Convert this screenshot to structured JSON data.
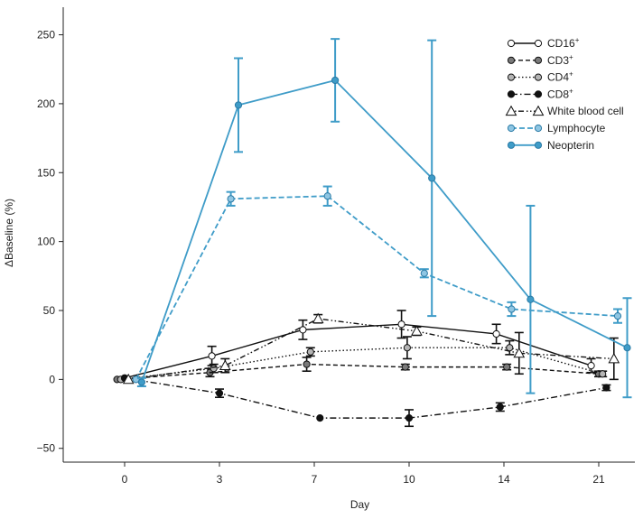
{
  "chart_data": {
    "type": "line",
    "title": "",
    "xlabel": "Day",
    "ylabel": "ΔBaseline (%)",
    "categories": [
      "0",
      "3",
      "7",
      "10",
      "14",
      "21"
    ],
    "yticks": [
      "−50",
      "0",
      "50",
      "100",
      "150",
      "200",
      "250"
    ],
    "ylim": [
      -60,
      270
    ],
    "grid": false,
    "legend_position": "top-right",
    "series": [
      {
        "name": "CD16",
        "sup": "+",
        "color": "#111111",
        "dash": "solid",
        "marker": "circle",
        "fill": "#ffffff",
        "points": [
          {
            "x": 0.0,
            "y": 1,
            "err": 0
          },
          {
            "x": 0.92,
            "y": 17,
            "err": 7
          },
          {
            "x": 1.88,
            "y": 36,
            "err": 7
          },
          {
            "x": 2.92,
            "y": 40,
            "err": 10
          },
          {
            "x": 3.92,
            "y": 33,
            "err": 7
          },
          {
            "x": 4.92,
            "y": 10,
            "err": 5
          }
        ]
      },
      {
        "name": "CD3",
        "sup": "+",
        "color": "#111111",
        "dash": "5,3",
        "marker": "circle",
        "fill": "#7a7a7a",
        "points": [
          {
            "x": -0.08,
            "y": 0,
            "err": 0
          },
          {
            "x": 0.9,
            "y": 5,
            "err": 3
          },
          {
            "x": 1.92,
            "y": 11,
            "err": 5
          },
          {
            "x": 2.96,
            "y": 9,
            "err": 2
          },
          {
            "x": 4.03,
            "y": 9,
            "err": 2
          },
          {
            "x": 5.0,
            "y": 4,
            "err": 2
          }
        ]
      },
      {
        "name": "CD4",
        "sup": "+",
        "color": "#111111",
        "dash": "1.5,2.5",
        "marker": "circle",
        "fill": "#b5b5b5",
        "points": [
          {
            "x": -0.04,
            "y": 0,
            "err": 0
          },
          {
            "x": 0.94,
            "y": 8,
            "err": 3
          },
          {
            "x": 1.96,
            "y": 20,
            "err": 3
          },
          {
            "x": 2.98,
            "y": 23,
            "err": 8
          },
          {
            "x": 4.06,
            "y": 23,
            "err": 5
          },
          {
            "x": 5.04,
            "y": 4,
            "err": 2
          }
        ]
      },
      {
        "name": "CD8",
        "sup": "+",
        "color": "#111111",
        "dash": "7,3,1.5,3",
        "marker": "circle",
        "fill": "#111111",
        "points": [
          {
            "x": 0.0,
            "y": 1,
            "err": 0
          },
          {
            "x": 1.0,
            "y": -10,
            "err": 3
          },
          {
            "x": 2.06,
            "y": -28,
            "err": 0
          },
          {
            "x": 3.0,
            "y": -28,
            "err": 6
          },
          {
            "x": 3.96,
            "y": -20,
            "err": 3
          },
          {
            "x": 5.08,
            "y": -6,
            "err": 2
          }
        ]
      },
      {
        "name": "White blood cell",
        "sup": "",
        "color": "#111111",
        "dash": "1.5,2.5,1.5,2.5,6,3",
        "marker": "triangle",
        "fill": "#ffffff",
        "points": [
          {
            "x": 0.04,
            "y": 0,
            "err": 0
          },
          {
            "x": 1.06,
            "y": 10,
            "err": 5
          },
          {
            "x": 2.04,
            "y": 44,
            "err": 3
          },
          {
            "x": 3.08,
            "y": 35,
            "err": 3
          },
          {
            "x": 4.16,
            "y": 19,
            "err": 15
          },
          {
            "x": 5.16,
            "y": 15,
            "err": 15
          }
        ]
      },
      {
        "name": "Lymphocyte",
        "sup": "",
        "color": "#3f9cc8",
        "dash": "6,3",
        "marker": "circle",
        "fill": "#8fc6e3",
        "points": [
          {
            "x": 0.12,
            "y": 0,
            "err": 0
          },
          {
            "x": 1.12,
            "y": 131,
            "err": 5
          },
          {
            "x": 2.14,
            "y": 133,
            "err": 7
          },
          {
            "x": 3.16,
            "y": 77,
            "err": 3
          },
          {
            "x": 4.08,
            "y": 51,
            "err": 5
          },
          {
            "x": 5.2,
            "y": 46,
            "err": 5
          }
        ]
      },
      {
        "name": "Neopterin",
        "sup": "",
        "color": "#3f9cc8",
        "dash": "solid",
        "marker": "circle",
        "fill": "#3f9cc8",
        "points": [
          {
            "x": 0.18,
            "y": -2,
            "err": 3
          },
          {
            "x": 1.2,
            "y": 199,
            "err": 34
          },
          {
            "x": 2.22,
            "y": 217,
            "err": 30
          },
          {
            "x": 3.24,
            "y": 146,
            "err": 100
          },
          {
            "x": 4.28,
            "y": 58,
            "err": 68
          },
          {
            "x": 5.3,
            "y": 23,
            "err": 36
          }
        ]
      }
    ]
  }
}
